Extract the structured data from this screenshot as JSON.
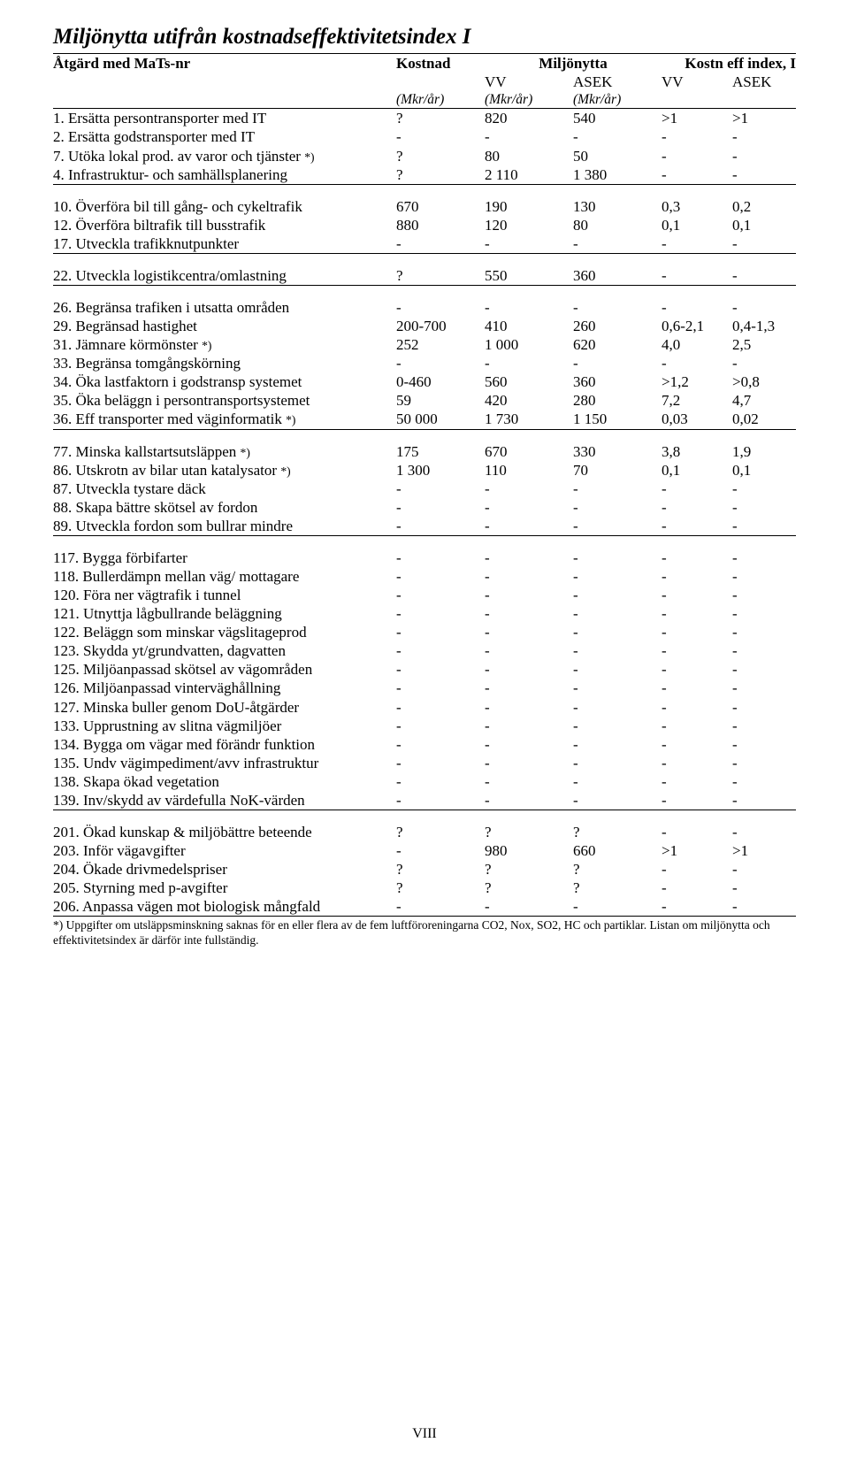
{
  "title": "Miljönytta utifrån kostnadseffektivitetsindex I",
  "footnote": "*) Uppgifter om utsläppsminskning saknas för en eller flera av de fem luftföroreningarna CO2, Nox, SO2, HC och partiklar. Listan om miljönytta och effektivitetsindex är därför inte fullständig.",
  "footer": "VIII",
  "header": {
    "col1": "Åtgärd med MaTs-nr",
    "col2": "Kostnad",
    "col3": "Miljönytta",
    "col5": "Kostn eff index, I",
    "sub_vv": "VV",
    "sub_asek": "ASEK",
    "unit": "(Mkr/år)"
  },
  "sections": [
    {
      "rows": [
        {
          "label": "1.  Ersätta persontransporter med IT",
          "c": [
            "?",
            "820",
            "540",
            ">1",
            ">1"
          ]
        },
        {
          "label": "2.  Ersätta godstransporter med IT",
          "c": [
            "-",
            "-",
            "-",
            "-",
            "-"
          ]
        },
        {
          "label": "7.  Utöka lokal prod. av varor och tjänster *)",
          "c": [
            "?",
            "80",
            "50",
            "-",
            "-"
          ]
        },
        {
          "label": "4.  Infrastruktur- och samhällsplanering",
          "c": [
            "?",
            "2 110",
            "1 380",
            "-",
            "-"
          ]
        }
      ]
    },
    {
      "rows": [
        {
          "label": "10.  Överföra bil till gång- och cykeltrafik",
          "c": [
            "670",
            "190",
            "130",
            "0,3",
            "0,2"
          ]
        },
        {
          "label": "12.  Överföra biltrafik till busstrafik",
          "c": [
            "880",
            "120",
            "80",
            "0,1",
            "0,1"
          ]
        },
        {
          "label": "17.  Utveckla trafikknutpunkter",
          "c": [
            "-",
            "-",
            "-",
            "-",
            "-"
          ]
        }
      ]
    },
    {
      "rows": [
        {
          "label": "22.  Utveckla logistikcentra/omlastning",
          "c": [
            "?",
            "550",
            "360",
            "-",
            "-"
          ]
        }
      ]
    },
    {
      "rows": [
        {
          "label": "26.  Begränsa trafiken i utsatta områden",
          "c": [
            "-",
            "-",
            "-",
            "-",
            "-"
          ]
        },
        {
          "label": "29.  Begränsad hastighet",
          "c": [
            "200-700",
            "410",
            "260",
            "0,6-2,1",
            "0,4-1,3"
          ]
        },
        {
          "label": "31.  Jämnare körmönster *)",
          "c": [
            "252",
            "1 000",
            "620",
            "4,0",
            "2,5"
          ]
        },
        {
          "label": "33.  Begränsa tomgångskörning",
          "c": [
            "-",
            "-",
            "-",
            "-",
            "-"
          ]
        },
        {
          "label": "34.  Öka lastfaktorn i godstransp systemet",
          "c": [
            "0-460",
            "560",
            "360",
            ">1,2",
            ">0,8"
          ]
        },
        {
          "label": "35.  Öka beläggn i persontransportsystemet",
          "c": [
            "59",
            "420",
            "280",
            "7,2",
            "4,7"
          ]
        },
        {
          "label": "36.  Eff transporter med väginformatik *)",
          "c": [
            "50 000",
            "1 730",
            "1 150",
            "0,03",
            "0,02"
          ]
        }
      ]
    },
    {
      "rows": [
        {
          "label": "77.  Minska kallstartsutsläppen *)",
          "c": [
            "175",
            "670",
            "330",
            "3,8",
            "1,9"
          ]
        },
        {
          "label": "86.  Utskrotn av bilar utan katalysator *)",
          "c": [
            "1 300",
            "110",
            "70",
            "0,1",
            "0,1"
          ]
        },
        {
          "label": "87.  Utveckla tystare däck",
          "c": [
            "-",
            "-",
            "-",
            "-",
            "-"
          ]
        },
        {
          "label": "88.  Skapa bättre skötsel av fordon",
          "c": [
            "-",
            "-",
            "-",
            "-",
            "-"
          ]
        },
        {
          "label": "89.  Utveckla fordon som bullrar mindre",
          "c": [
            "-",
            "-",
            "-",
            "-",
            "-"
          ]
        }
      ]
    },
    {
      "rows": [
        {
          "label": "117.  Bygga förbifarter",
          "c": [
            "-",
            "-",
            "-",
            "-",
            "-"
          ]
        },
        {
          "label": "118.  Bullerdämpn mellan väg/ mottagare",
          "c": [
            "-",
            "-",
            "-",
            "-",
            "-"
          ]
        },
        {
          "label": "120.  Föra ner vägtrafik i tunnel",
          "c": [
            "-",
            "-",
            "-",
            "-",
            "-"
          ]
        },
        {
          "label": "121.  Utnyttja lågbullrande beläggning",
          "c": [
            "-",
            "-",
            "-",
            "-",
            "-"
          ]
        },
        {
          "label": "122.  Beläggn som minskar vägslitageprod",
          "c": [
            "-",
            "-",
            "-",
            "-",
            "-"
          ]
        },
        {
          "label": "123.  Skydda yt/grundvatten, dagvatten",
          "c": [
            "-",
            "-",
            "-",
            "-",
            "-"
          ]
        },
        {
          "label": "125.  Miljöanpassad skötsel av vägområden",
          "c": [
            "-",
            "-",
            "-",
            "-",
            "-"
          ]
        },
        {
          "label": "126.  Miljöanpassad vinterväghållning",
          "c": [
            "-",
            "-",
            "-",
            "-",
            "-"
          ]
        },
        {
          "label": "127.  Minska buller genom DoU-åtgärder",
          "c": [
            "-",
            "-",
            "-",
            "-",
            "-"
          ]
        },
        {
          "label": "133.  Upprustning av slitna vägmiljöer",
          "c": [
            "-",
            "-",
            "-",
            "-",
            "-"
          ]
        },
        {
          "label": "134.  Bygga om vägar med förändr funktion",
          "c": [
            "-",
            "-",
            "-",
            "-",
            "-"
          ]
        },
        {
          "label": "135.  Undv vägimpediment/avv infrastruktur",
          "c": [
            "-",
            "-",
            "-",
            "-",
            "-"
          ]
        },
        {
          "label": "138.  Skapa ökad vegetation",
          "c": [
            "-",
            "-",
            "-",
            "-",
            "-"
          ]
        },
        {
          "label": "139.  Inv/skydd av värdefulla NoK-värden",
          "c": [
            "-",
            "-",
            "-",
            "-",
            "-"
          ]
        }
      ]
    },
    {
      "rows": [
        {
          "label": "201.  Ökad kunskap & miljöbättre beteende",
          "c": [
            "?",
            "?",
            "?",
            "-",
            "-"
          ]
        },
        {
          "label": "203.  Inför vägavgifter",
          "c": [
            "-",
            "980",
            "660",
            ">1",
            ">1"
          ]
        },
        {
          "label": "204.  Ökade drivmedelspriser",
          "c": [
            "?",
            "?",
            "?",
            "-",
            "-"
          ]
        },
        {
          "label": "205.  Styrning med p-avgifter",
          "c": [
            "?",
            "?",
            "?",
            "-",
            "-"
          ]
        },
        {
          "label": "206.  Anpassa vägen mot biologisk mångfald",
          "c": [
            "-",
            "-",
            "-",
            "-",
            "-"
          ]
        }
      ]
    }
  ]
}
